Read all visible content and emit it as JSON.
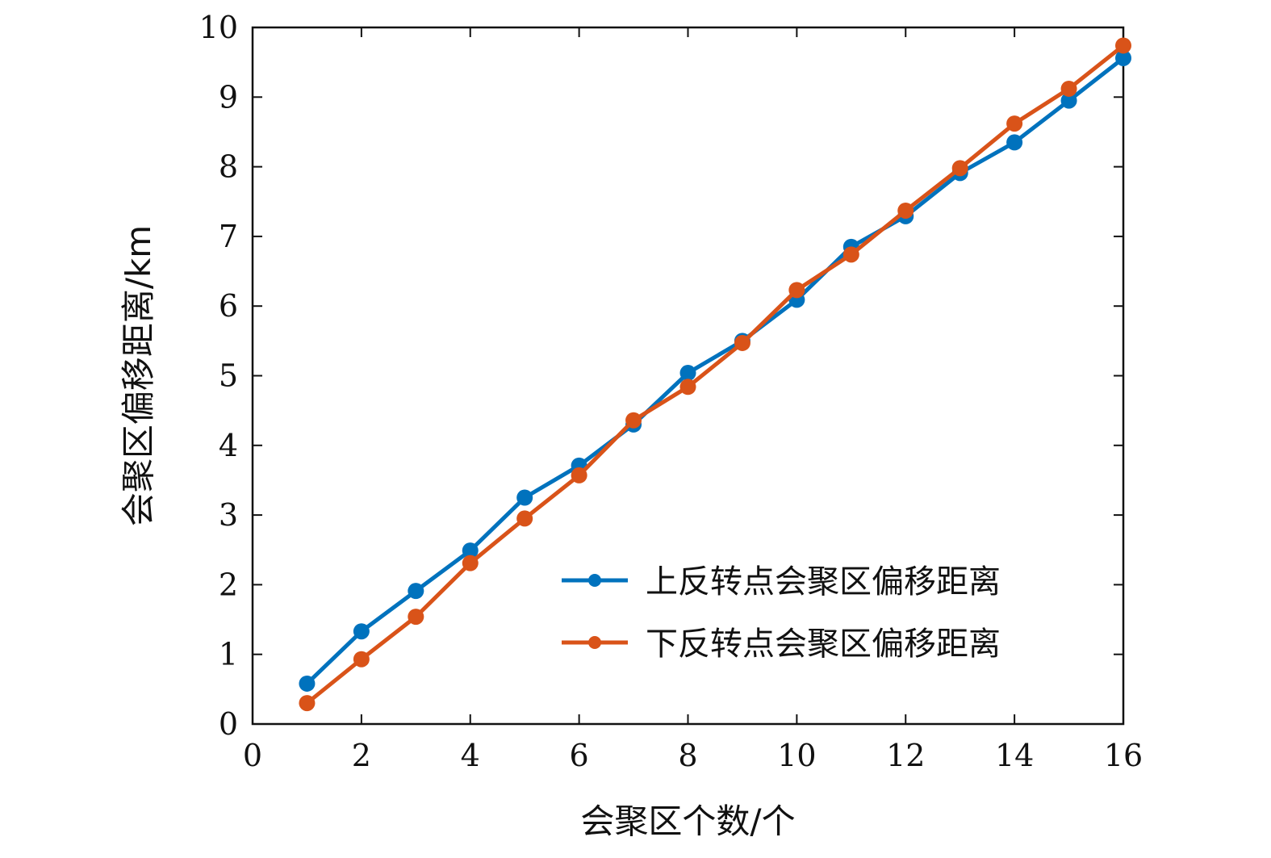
{
  "chart_data": {
    "type": "line",
    "xlabel": "会聚区个数/个",
    "ylabel": "会聚区偏移距离/km",
    "xlim": [
      0,
      16
    ],
    "ylim": [
      0,
      10
    ],
    "xticks": [
      0,
      2,
      4,
      6,
      8,
      10,
      12,
      14,
      16
    ],
    "yticks": [
      0,
      1,
      2,
      3,
      4,
      5,
      6,
      7,
      8,
      9,
      10
    ],
    "grid": false,
    "legend_position": "bottom-right",
    "x": [
      1,
      2,
      3,
      4,
      5,
      6,
      7,
      8,
      9,
      10,
      11,
      12,
      13,
      14,
      15,
      16
    ],
    "series": [
      {
        "name": "上反转点会聚区偏移距离",
        "color": "#0072BD",
        "values": [
          0.58,
          1.33,
          1.91,
          2.49,
          3.25,
          3.71,
          4.3,
          5.04,
          5.5,
          6.09,
          6.85,
          7.29,
          7.91,
          8.35,
          8.95,
          9.56
        ]
      },
      {
        "name": "下反转点会聚区偏移距离",
        "color": "#D95319",
        "values": [
          0.3,
          0.93,
          1.54,
          2.31,
          2.95,
          3.57,
          4.36,
          4.84,
          5.47,
          6.23,
          6.74,
          7.37,
          7.98,
          8.62,
          9.12,
          9.74
        ]
      }
    ]
  }
}
